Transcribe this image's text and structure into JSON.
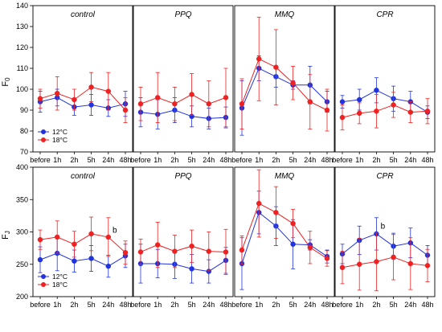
{
  "chart_data": {
    "type": "line",
    "categories": [
      "before",
      "1h",
      "2h",
      "5h",
      "24h",
      "48h"
    ],
    "panel_titles": [
      "control",
      "PPQ",
      "MMQ",
      "CPR"
    ],
    "rows": [
      {
        "ylabel_main": "F",
        "ylabel_sub": "0",
        "ylim": [
          70,
          140
        ],
        "yticks": [
          70,
          80,
          90,
          100,
          110,
          120,
          130,
          140
        ],
        "panels": [
          {
            "title": "control",
            "series": [
              {
                "name": "12°C",
                "color": "#2233dd",
                "values": [
                  94,
                  96,
                  91.5,
                  92.5,
                  91,
                  93
                ],
                "errors": [
                  5,
                  4,
                  4,
                  5,
                  4,
                  6
                ]
              },
              {
                "name": "18°C",
                "color": "#ee2222",
                "values": [
                  95.5,
                  98,
                  95,
                  101,
                  99,
                  90
                ],
                "errors": [
                  4.5,
                  8,
                  5,
                  7,
                  9,
                  6
                ]
              }
            ],
            "annotations": []
          },
          {
            "title": "PPQ",
            "series": [
              {
                "name": "12°C",
                "color": "#2233dd",
                "values": [
                  89,
                  88,
                  90,
                  87,
                  86,
                  86.5
                ],
                "errors": [
                  7,
                  7,
                  6,
                  5,
                  5,
                  5
                ]
              },
              {
                "name": "18°C",
                "color": "#ee2222",
                "values": [
                  93,
                  96,
                  93,
                  97.5,
                  93,
                  96
                ],
                "errors": [
                  8,
                  12,
                  8,
                  10,
                  11,
                  14
                ]
              }
            ],
            "annotations": []
          },
          {
            "title": "MMQ",
            "series": [
              {
                "name": "12°C",
                "color": "#2233dd",
                "values": [
                  91,
                  110,
                  106,
                  102,
                  102,
                  94
                ],
                "errors": [
                  13,
                  6,
                  5,
                  2,
                  9,
                  5
                ]
              },
              {
                "name": "18°C",
                "color": "#ee2222",
                "values": [
                  93,
                  114.5,
                  110.5,
                  103,
                  94,
                  90
                ],
                "errors": [
                  12,
                  20,
                  18,
                  8,
                  13,
                  10
                ]
              }
            ],
            "annotations": []
          },
          {
            "title": "CPR",
            "series": [
              {
                "name": "12°C",
                "color": "#2233dd",
                "values": [
                  94,
                  95,
                  99.5,
                  95.5,
                  94,
                  89
                ],
                "errors": [
                  3,
                  5,
                  6,
                  6,
                  5,
                  3
                ]
              },
              {
                "name": "18°C",
                "color": "#ee2222",
                "values": [
                  86.5,
                  88.5,
                  89.5,
                  92.5,
                  89,
                  89.5
                ],
                "errors": [
                  6,
                  5,
                  8,
                  6,
                  5,
                  6
                ]
              }
            ],
            "annotations": []
          }
        ],
        "legend": {
          "panel": 0,
          "position": "bottom-left"
        }
      },
      {
        "ylabel_main": "F",
        "ylabel_sub": "J",
        "ylim": [
          200,
          400
        ],
        "yticks": [
          200,
          250,
          300,
          350,
          400
        ],
        "panels": [
          {
            "title": "control",
            "series": [
              {
                "name": "12°C",
                "color": "#2233dd",
                "values": [
                  257,
                  267,
                  255,
                  259,
                  247,
                  263
                ],
                "errors": [
                  20,
                  27,
                  17,
                  20,
                  17,
                  18
                ]
              },
              {
                "name": "18°C",
                "color": "#ee2222",
                "values": [
                  288,
                  292,
                  281,
                  297,
                  292,
                  268
                ],
                "errors": [
                  15,
                  25,
                  20,
                  26,
                  30,
                  18
                ]
              }
            ],
            "annotations": [
              {
                "text": "b",
                "x": "24h",
                "y": 299
              }
            ]
          },
          {
            "title": "PPQ",
            "series": [
              {
                "name": "12°C",
                "color": "#2233dd",
                "values": [
                  251,
                  251,
                  250,
                  243,
                  239,
                  256
                ],
                "errors": [
                  30,
                  22,
                  22,
                  22,
                  18,
                  20
                ]
              },
              {
                "name": "18°C",
                "color": "#ee2222",
                "values": [
                  269,
                  280,
                  270,
                  278,
                  270,
                  269
                ],
                "errors": [
                  20,
                  35,
                  25,
                  25,
                  30,
                  35
                ]
              }
            ],
            "annotations": []
          },
          {
            "title": "MMQ",
            "series": [
              {
                "name": "12°C",
                "color": "#2233dd",
                "values": [
                  251,
                  330,
                  309,
                  281,
                  280,
                  262
                ],
                "errors": [
                  40,
                  33,
                  30,
                  38,
                  8,
                  10
                ]
              },
              {
                "name": "18°C",
                "color": "#ee2222",
                "values": [
                  272,
                  344,
                  330,
                  313,
                  276,
                  259
                ],
                "errors": [
                  22,
                  52,
                  40,
                  22,
                  25,
                  12
                ]
              }
            ],
            "annotations": []
          },
          {
            "title": "CPR",
            "series": [
              {
                "name": "12°C",
                "color": "#2233dd",
                "values": [
                  266,
                  287,
                  297,
                  278,
                  283,
                  264
                ],
                "errors": [
                  15,
                  22,
                  25,
                  20,
                  23,
                  15
                ]
              },
              {
                "name": "18°C",
                "color": "#ee2222",
                "values": [
                  245,
                  250,
                  254,
                  261,
                  251,
                  248
                ],
                "errors": [
                  25,
                  40,
                  45,
                  35,
                  40,
                  25
                ]
              }
            ],
            "annotations": [
              {
                "text": "b",
                "x": "2h",
                "y": 305
              }
            ]
          }
        ],
        "legend": {
          "panel": 0,
          "position": "bottom-left"
        }
      }
    ],
    "legend_entries": [
      "12°C",
      "18°C"
    ],
    "grid": false
  }
}
